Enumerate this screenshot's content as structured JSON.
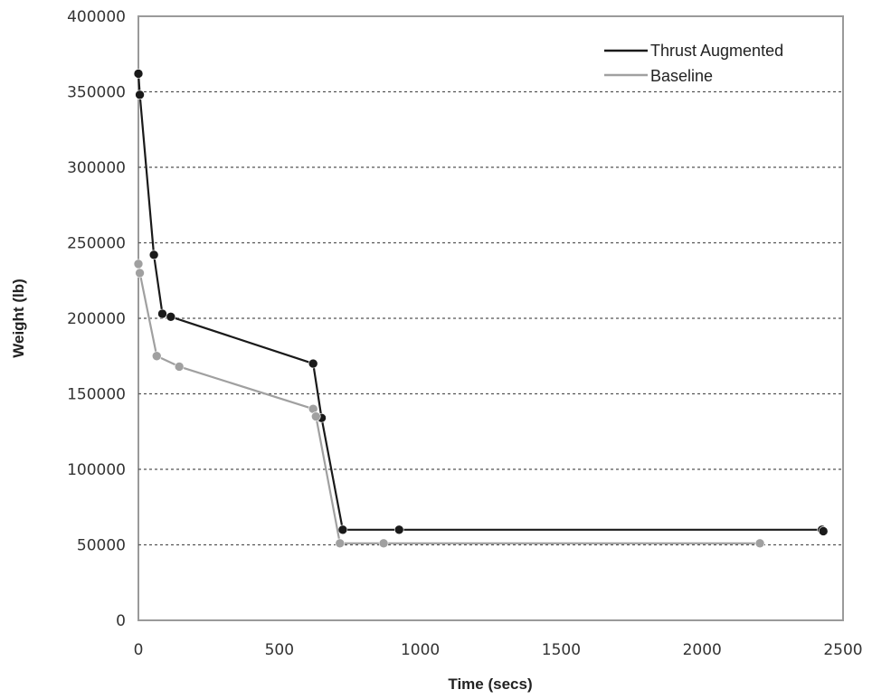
{
  "chart_data": {
    "type": "line",
    "title": "",
    "xlabel": "Time (secs)",
    "ylabel": "Weight (lb)",
    "xlim": [
      0,
      2500
    ],
    "ylim": [
      0,
      400000
    ],
    "xticks": [
      0,
      500,
      1000,
      1500,
      2000,
      2500
    ],
    "yticks": [
      0,
      50000,
      100000,
      150000,
      200000,
      250000,
      300000,
      350000,
      400000
    ],
    "xtick_labels": [
      "0",
      "500",
      "1000",
      "1500",
      "2000",
      "2500"
    ],
    "ytick_labels": [
      "0",
      "50000",
      "100000",
      "150000",
      "200000",
      "250000",
      "300000",
      "350000",
      "400000"
    ],
    "grid": "horizontal dotted",
    "legend_position": "top-right",
    "series": [
      {
        "name": "Thrust Augmented",
        "color": "#1a1a1a",
        "x": [
          0,
          5,
          55,
          85,
          115,
          620,
          650,
          725,
          925,
          2425,
          2430
        ],
        "y": [
          362000,
          348000,
          242000,
          203000,
          201000,
          170000,
          134000,
          60000,
          60000,
          60000,
          59000
        ]
      },
      {
        "name": "Baseline",
        "color": "#a0a0a0",
        "x": [
          0,
          5,
          65,
          145,
          620,
          630,
          715,
          870,
          2205
        ],
        "y": [
          236000,
          230000,
          175000,
          168000,
          140000,
          135000,
          51000,
          51000,
          51000
        ]
      }
    ]
  }
}
